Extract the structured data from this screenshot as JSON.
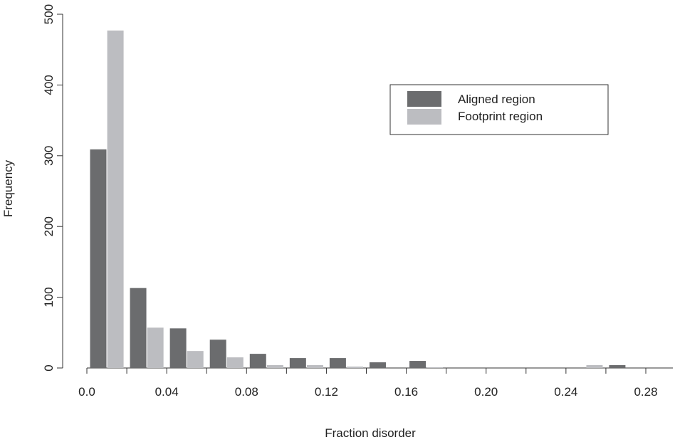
{
  "chart_data": {
    "type": "bar",
    "title": "",
    "xlabel": "Fraction disorder",
    "ylabel": "Frequency",
    "xlim": [
      0.0,
      0.28
    ],
    "ylim": [
      0,
      500
    ],
    "xticks": [
      "0.0",
      "0.04",
      "0.08",
      "0.12",
      "0.16",
      "0.20",
      "0.24",
      "0.28"
    ],
    "yticks": [
      "0",
      "100",
      "200",
      "300",
      "400",
      "500"
    ],
    "bin_width": 0.02,
    "x": [
      0.01,
      0.03,
      0.05,
      0.07,
      0.09,
      0.11,
      0.13,
      0.15,
      0.17,
      0.19,
      0.21,
      0.23,
      0.25,
      0.27
    ],
    "series": [
      {
        "name": "Aligned region",
        "color": "#6b6c6e",
        "values": [
          309,
          113,
          56,
          40,
          20,
          14,
          14,
          8,
          10,
          0,
          0,
          0,
          0,
          4
        ]
      },
      {
        "name": "Footprint region",
        "color": "#bcbdc1",
        "values": [
          477,
          57,
          24,
          15,
          4,
          4,
          2,
          0,
          1,
          0,
          0,
          0,
          4,
          0
        ]
      }
    ],
    "legend_position": "top-right",
    "grid": false
  }
}
